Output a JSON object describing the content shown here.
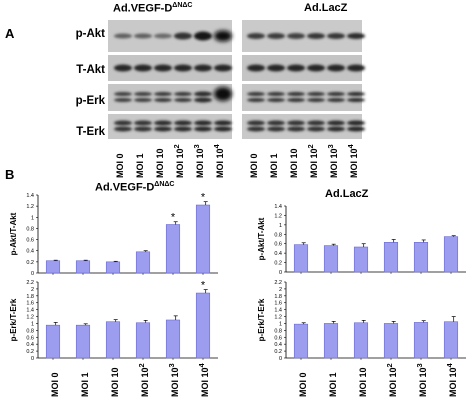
{
  "figure": {
    "panel_a_label": "A",
    "panel_b_label": "B",
    "group_left": "Ad.VEGF-D",
    "group_left_sup": "ΔNΔC",
    "group_right": "Ad.LacZ",
    "blot_rows": [
      "p-Akt",
      "T-Akt",
      "p-Erk",
      "T-Erk"
    ],
    "moi_labels": [
      {
        "base": "MOI 0",
        "sup": ""
      },
      {
        "base": "MOI 1",
        "sup": ""
      },
      {
        "base": "MOI 10",
        "sup": ""
      },
      {
        "base": "MOI 10",
        "sup": "2"
      },
      {
        "base": "MOI 10",
        "sup": "3"
      },
      {
        "base": "MOI 10",
        "sup": "4"
      }
    ]
  },
  "chart_data": [
    {
      "type": "bar",
      "group": "left-top",
      "categories": [
        "MOI 0",
        "MOI 1",
        "MOI 10",
        "MOI 10²",
        "MOI 10³",
        "MOI 10⁴"
      ],
      "values": [
        0.22,
        0.22,
        0.2,
        0.38,
        0.87,
        1.22
      ],
      "errors": [
        0.01,
        0.01,
        0.01,
        0.02,
        0.05,
        0.06
      ],
      "significant": [
        false,
        false,
        false,
        false,
        true,
        true
      ],
      "ylabel": "p-Akt/T-Akt",
      "ylim": [
        0,
        1.4
      ],
      "yticks": [
        "0",
        "0.2",
        "0.4",
        "0.6",
        "0.8",
        "1",
        "1.2",
        "1.4"
      ],
      "bar_color": "#9d9df0",
      "significance_marker": "*"
    },
    {
      "type": "bar",
      "group": "left-bottom",
      "categories": [
        "MOI 0",
        "MOI 1",
        "MOI 10",
        "MOI 10²",
        "MOI 10³",
        "MOI 10⁴"
      ],
      "values": [
        0.95,
        0.95,
        1.05,
        1.02,
        1.1,
        1.88
      ],
      "errors": [
        0.08,
        0.04,
        0.06,
        0.07,
        0.12,
        0.1
      ],
      "significant": [
        false,
        false,
        false,
        false,
        false,
        true
      ],
      "ylabel": "p-Erk/T-Erk",
      "ylim": [
        0,
        2.2
      ],
      "yticks": [
        "0",
        "0.2",
        "0.4",
        "0.6",
        "0.8",
        "1",
        "1.2",
        "1.4",
        "1.6",
        "1.8",
        "2",
        "2.2"
      ],
      "bar_color": "#9d9df0",
      "significance_marker": "*"
    },
    {
      "type": "bar",
      "group": "right-top",
      "categories": [
        "MOI 0",
        "MOI 1",
        "MOI 10",
        "MOI 10²",
        "MOI 10³",
        "MOI 10⁴"
      ],
      "values": [
        0.58,
        0.56,
        0.53,
        0.63,
        0.63,
        0.75
      ],
      "errors": [
        0.04,
        0.03,
        0.07,
        0.06,
        0.05,
        0.02
      ],
      "significant": [
        false,
        false,
        false,
        false,
        false,
        false
      ],
      "ylabel": "p-Akt/T-Akt",
      "ylim": [
        0,
        1.4
      ],
      "yticks": [
        "0",
        "0.2",
        "0.4",
        "0.6",
        "0.8",
        "1",
        "1.2",
        "1.4"
      ],
      "bar_color": "#9d9df0"
    },
    {
      "type": "bar",
      "group": "right-bottom",
      "categories": [
        "MOI 0",
        "MOI 1",
        "MOI 10",
        "MOI 10²",
        "MOI 10³",
        "MOI 10⁴"
      ],
      "values": [
        0.98,
        1.0,
        1.02,
        1.0,
        1.03,
        1.05
      ],
      "errors": [
        0.04,
        0.06,
        0.07,
        0.06,
        0.05,
        0.15
      ],
      "significant": [
        false,
        false,
        false,
        false,
        false,
        false
      ],
      "ylabel": "p-Erk/T-Erk",
      "ylim": [
        0,
        2.2
      ],
      "yticks": [
        "0",
        "0.2",
        "0.4",
        "0.6",
        "0.8",
        "1",
        "1.2",
        "1.4",
        "1.6",
        "1.8",
        "2",
        "2.2"
      ],
      "bar_color": "#9d9df0"
    }
  ]
}
